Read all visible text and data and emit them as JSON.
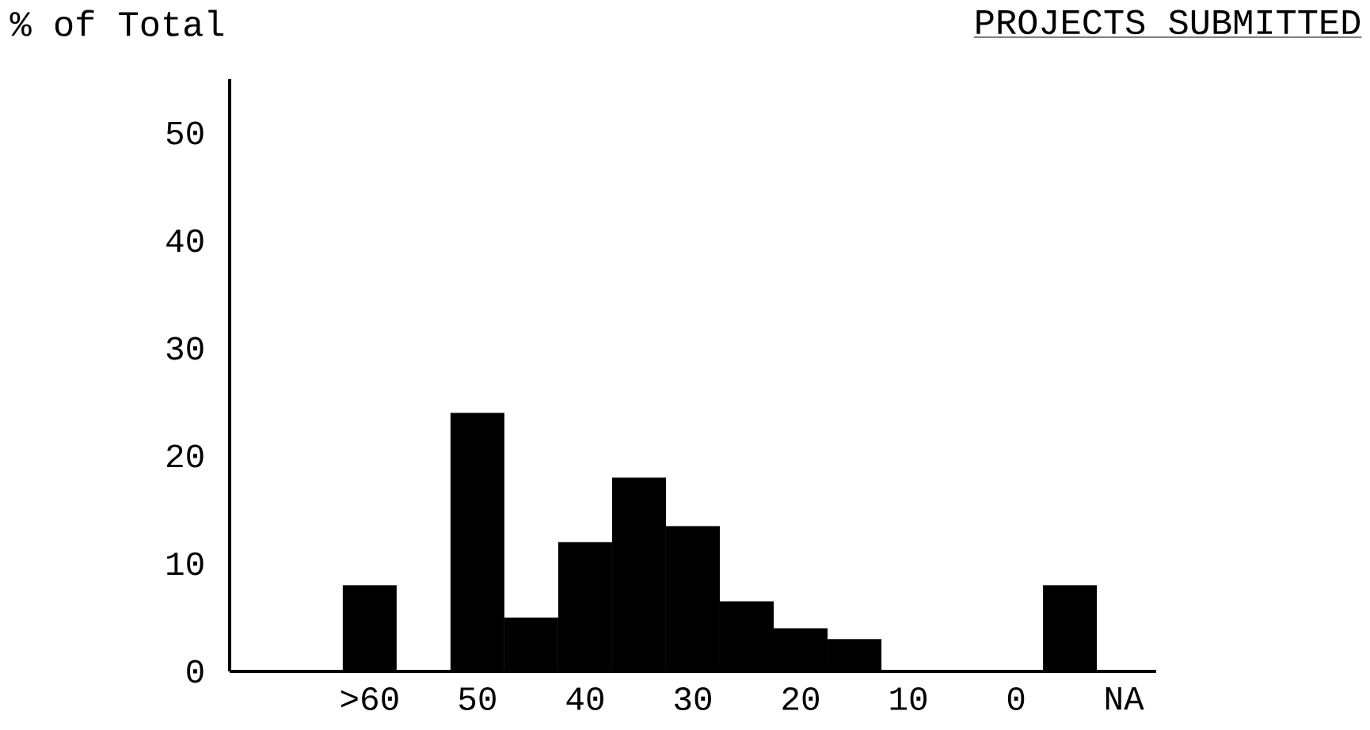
{
  "chart_data": {
    "type": "histogram",
    "title": "PROJECTS SUBMITTED",
    "ylabel": "% of Total",
    "bins": [
      -7.5,
      -2.5,
      2.5,
      7.5,
      12.5,
      17.5,
      22.5,
      27.5,
      32.5,
      37.5,
      42.5,
      47.5,
      52.5,
      57.5,
      62.5
    ],
    "values": [
      8,
      0,
      0,
      0,
      3,
      4,
      6.5,
      13.5,
      18,
      12,
      5,
      24,
      0,
      8
    ],
    "color": "#000000",
    "xlim": [
      73,
      -13
    ],
    "xticks": [
      {
        "value": 60,
        "label": ">60"
      },
      50,
      40,
      30,
      20,
      10,
      0,
      {
        "value": -10,
        "label": "NA"
      }
    ],
    "ylim": [
      0,
      55
    ],
    "yticks": [
      0,
      10,
      20,
      30,
      40,
      50
    ]
  }
}
